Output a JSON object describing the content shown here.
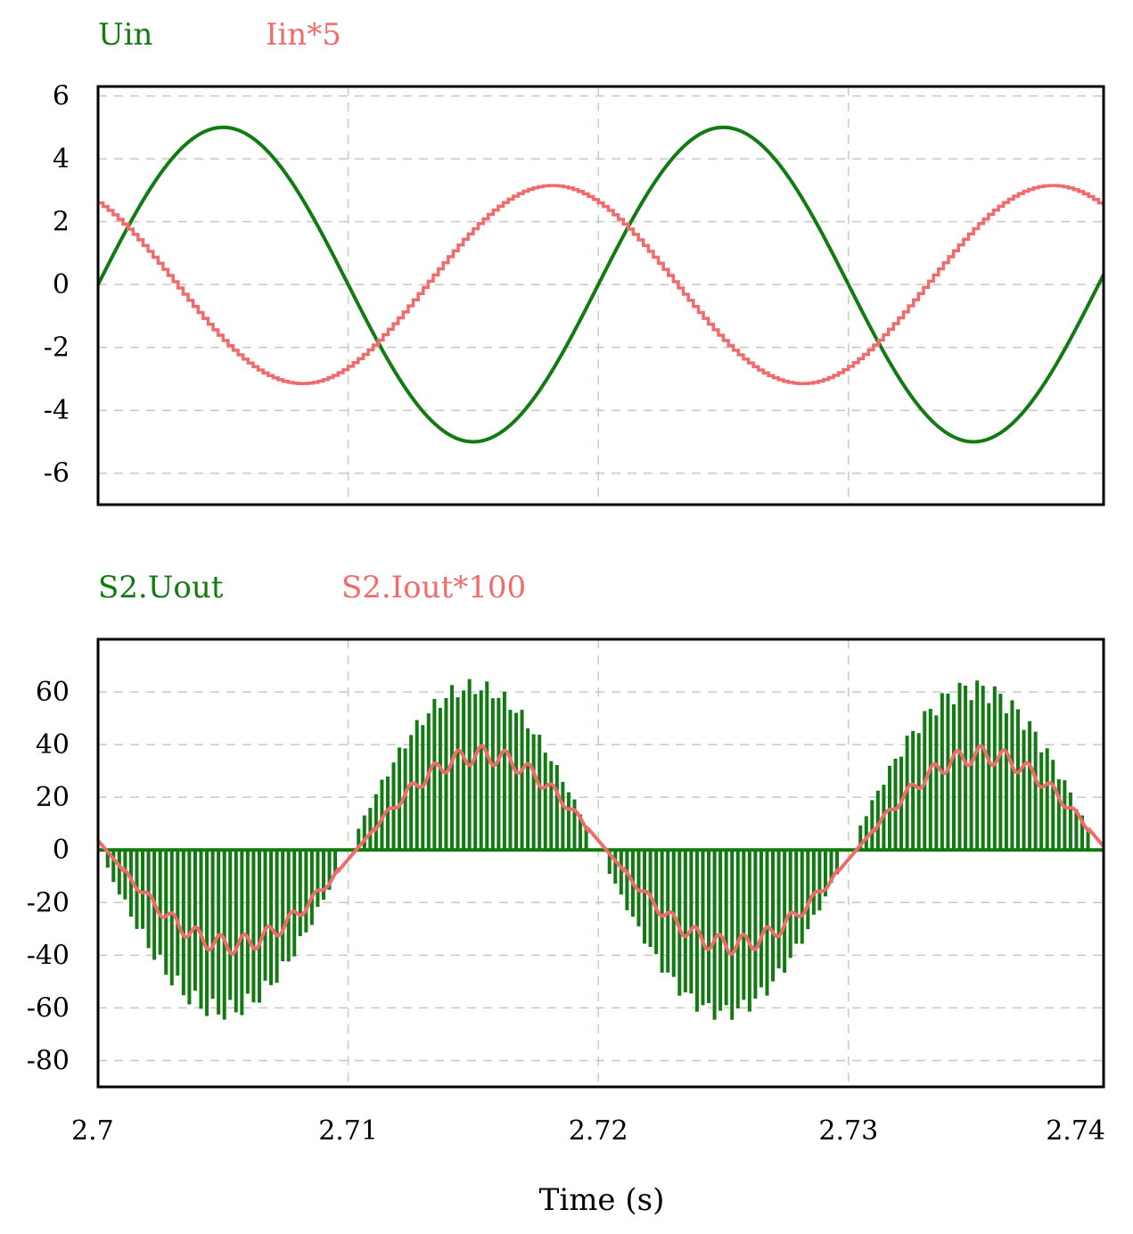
{
  "colors": {
    "green": "#117a11",
    "red": "#f06b6b",
    "frame": "#000000",
    "hgrid": "#c8c8c8",
    "vgrid": "#b8d8a8"
  },
  "xlabel": "Time (s)",
  "x_ticks": [
    "2.7",
    "2.71",
    "2.72",
    "2.73",
    "2.74"
  ],
  "chart_data": [
    {
      "type": "line",
      "xlim": [
        2.7,
        2.7402
      ],
      "ylim": [
        -7,
        6.3
      ],
      "y_ticks": [
        "6",
        "4",
        "2",
        "0",
        "-2",
        "-4",
        "-6"
      ],
      "y_tick_values": [
        6,
        4,
        2,
        0,
        -2,
        -4,
        -6
      ],
      "grid": true,
      "legend_position": "top-left",
      "series": [
        {
          "name": "Uin",
          "color": "#117a11",
          "x": [
            2.7,
            2.7025,
            2.705,
            2.7075,
            2.71,
            2.7125,
            2.715,
            2.7175,
            2.72,
            2.7225,
            2.725,
            2.7275,
            2.73,
            2.7325,
            2.735,
            2.7375,
            2.7402
          ],
          "y": [
            0,
            3.5,
            5,
            3.5,
            -1.2,
            -4.1,
            -5,
            -3.6,
            0,
            3.5,
            5,
            3.5,
            -1.2,
            -4.1,
            -5,
            -3.6,
            0
          ]
        },
        {
          "name": "Iin*5",
          "color": "#f06b6b",
          "x": [
            2.7,
            2.7025,
            2.705,
            2.7075,
            2.708,
            2.71,
            2.7125,
            2.715,
            2.7175,
            2.7183,
            2.72,
            2.7225,
            2.725,
            2.7275,
            2.728,
            2.73,
            2.7325,
            2.735,
            2.7375,
            2.7383,
            2.7402
          ],
          "y": [
            2.6,
            0.3,
            -1.8,
            -3,
            -3.15,
            -2.7,
            -1.2,
            1.6,
            3.0,
            3.12,
            2.6,
            0.3,
            -1.8,
            -3,
            -3.15,
            -2.7,
            -1.2,
            1.6,
            3.0,
            3.12,
            2.5
          ]
        }
      ]
    },
    {
      "type": "line",
      "xlim": [
        2.7,
        2.7402
      ],
      "ylim": [
        -90,
        80
      ],
      "y_ticks": [
        "60",
        "40",
        "20",
        "0",
        "-20",
        "-40",
        "-60",
        "-80"
      ],
      "y_tick_values": [
        60,
        40,
        20,
        0,
        -20,
        -40,
        -60,
        -80
      ],
      "grid": true,
      "legend_position": "top-left",
      "series": [
        {
          "name": "S2.Uout",
          "color": "#117a11",
          "style": "pulses",
          "envelope_amplitude": 65,
          "envelope_period": 0.02
        },
        {
          "name": "S2.Iout*100",
          "color": "#f06b6b",
          "x": [
            2.7,
            2.7025,
            2.705,
            2.7065,
            2.7075,
            2.71,
            2.7125,
            2.7145,
            2.715,
            2.7175,
            2.72,
            2.7225,
            2.725,
            2.7265,
            2.7275,
            2.73,
            2.7325,
            2.7345,
            2.735,
            2.7375,
            2.7402
          ],
          "y": [
            0,
            -25,
            -36,
            -35,
            -28,
            0,
            25,
            36,
            35,
            27,
            0,
            -25,
            -36,
            -35,
            -28,
            0,
            25,
            36,
            35,
            27,
            0
          ]
        }
      ]
    }
  ]
}
